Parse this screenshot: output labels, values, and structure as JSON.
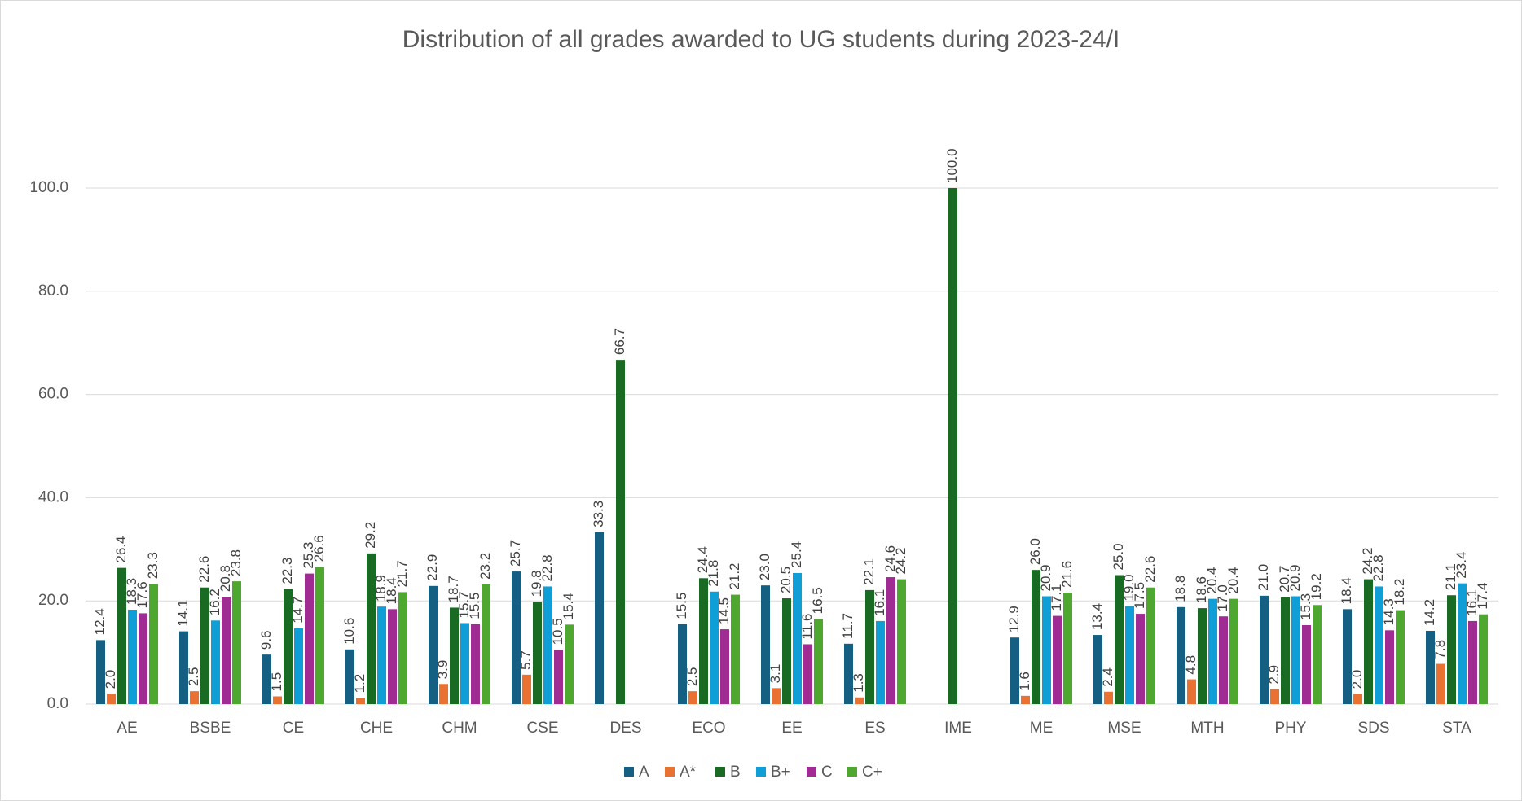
{
  "chart_data": {
    "type": "bar",
    "title": "Distribution of all grades awarded to UG students during 2023-24/I",
    "categories": [
      "AE",
      "BSBE",
      "CE",
      "CHE",
      "CHM",
      "CSE",
      "DES",
      "ECO",
      "EE",
      "ES",
      "IME",
      "ME",
      "MSE",
      "MTH",
      "PHY",
      "SDS",
      "STA"
    ],
    "series": [
      {
        "name": "A",
        "color": "#156082",
        "values": [
          12.4,
          14.1,
          9.6,
          10.6,
          22.9,
          25.7,
          33.3,
          15.5,
          23.0,
          11.7,
          null,
          12.9,
          13.4,
          18.8,
          21.0,
          18.4,
          14.2
        ],
        "value_labels": [
          "12.4",
          "14.1",
          "9.6",
          "10.6",
          "22.9",
          "25.7",
          "33.3",
          "15.5",
          "23.0",
          "11.7",
          null,
          "12.9",
          "13.4",
          "18.8",
          "21.0",
          "18.4",
          "14.2"
        ]
      },
      {
        "name": "A*",
        "color": "#E97132",
        "values": [
          2.0,
          2.5,
          1.5,
          1.2,
          3.9,
          5.7,
          null,
          2.5,
          3.1,
          1.3,
          null,
          1.6,
          2.4,
          4.8,
          2.9,
          2.0,
          7.8
        ],
        "value_labels": [
          "2.0",
          "2.5",
          "1.5",
          "1.2",
          "3.9",
          "5.7",
          null,
          "2.5",
          "3.1",
          "1.3",
          null,
          "1.6",
          "2.4",
          "4.8",
          "2.9",
          "2.0",
          "7.8"
        ]
      },
      {
        "name": "B",
        "color": "#196B24",
        "values": [
          26.4,
          22.6,
          22.3,
          29.2,
          18.7,
          19.8,
          66.7,
          24.4,
          20.5,
          22.1,
          100.0,
          26.0,
          25.0,
          18.6,
          20.7,
          24.2,
          21.1
        ],
        "value_labels": [
          "26.4",
          "22.6",
          "22.3",
          "29.2",
          "18.7",
          "19.8",
          "66.7",
          "24.4",
          "20.5",
          "22.1",
          "100.0",
          "26.0",
          "25.0",
          "18.6",
          "20.7",
          "24.2",
          "21.1"
        ]
      },
      {
        "name": "B+",
        "color": "#0F9ED5",
        "values": [
          18.3,
          16.2,
          14.7,
          18.9,
          15.7,
          22.8,
          null,
          21.8,
          25.4,
          16.1,
          null,
          20.9,
          19.0,
          20.4,
          20.9,
          22.8,
          23.4
        ],
        "value_labels": [
          "18.3",
          "16.2",
          "14.7",
          "18.9",
          "15.7",
          "22.8",
          null,
          "21.8",
          "25.4",
          "16.1",
          null,
          "20.9",
          "19.0",
          "20.4",
          "20.9",
          "22.8",
          "23.4"
        ]
      },
      {
        "name": "C",
        "color": "#A02B93",
        "values": [
          17.6,
          20.8,
          25.3,
          18.4,
          15.5,
          10.5,
          null,
          14.5,
          11.6,
          24.6,
          null,
          17.1,
          17.5,
          17.0,
          15.3,
          14.3,
          16.1
        ],
        "value_labels": [
          "17.6",
          "20.8",
          "25.3",
          "18.4",
          "15.5",
          "10.5",
          null,
          "14.5",
          "11.6",
          "24.6",
          null,
          "17.1",
          "17.5",
          "17.0",
          "15.3",
          "14.3",
          "16.1"
        ]
      },
      {
        "name": "C+",
        "color": "#4EA72E",
        "values": [
          23.3,
          23.8,
          26.6,
          21.7,
          23.2,
          15.4,
          null,
          21.2,
          16.5,
          24.2,
          null,
          21.6,
          22.6,
          20.4,
          19.2,
          18.2,
          17.4
        ],
        "value_labels": [
          "23.3",
          "23.8",
          "26.6",
          "21.7",
          "23.2",
          "15.4",
          null,
          "21.2",
          "16.5",
          "24.2",
          null,
          "21.6",
          "22.6",
          "20.4",
          "19.2",
          "18.2",
          "17.4"
        ]
      }
    ],
    "ylim": [
      0,
      100
    ],
    "yticks": [
      {
        "value": 0,
        "label": "0.0"
      },
      {
        "value": 20,
        "label": "20.0"
      },
      {
        "value": 40,
        "label": "40.0"
      },
      {
        "value": 60,
        "label": "60.0"
      },
      {
        "value": 80,
        "label": "80.0"
      },
      {
        "value": 100,
        "label": "100.0"
      }
    ],
    "grid": true,
    "legend": "bottom"
  }
}
